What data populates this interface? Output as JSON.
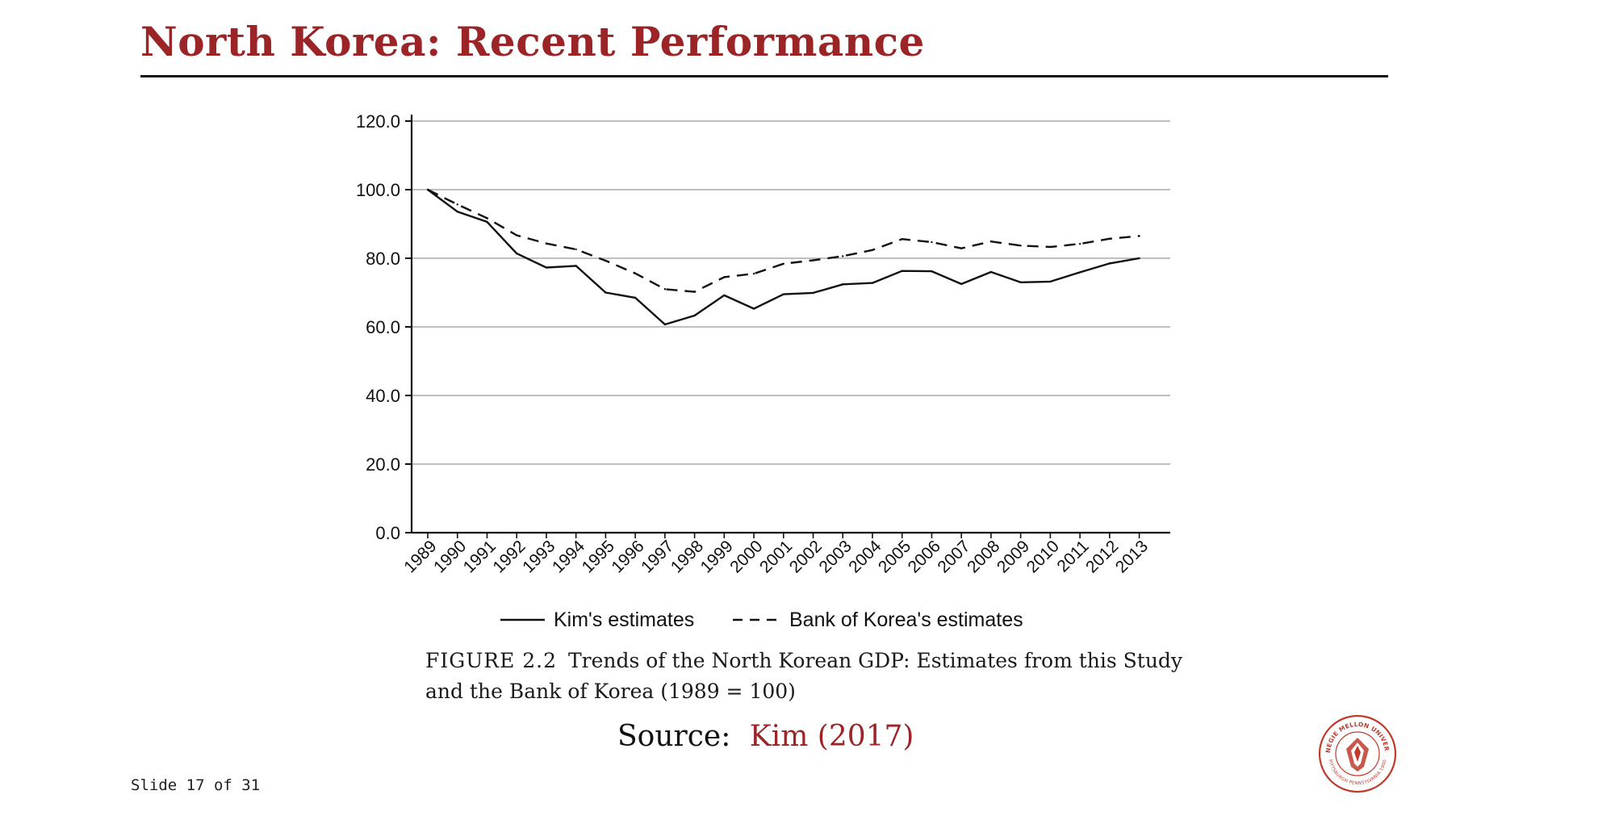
{
  "slide": {
    "title": "North Korea: Recent Performance",
    "source_prefix": "Source:",
    "source_link": "Kim (2017)",
    "counter": "Slide 17 of 31"
  },
  "figure": {
    "caption_label": "FIGURE 2.2",
    "caption_text": "Trends of the North Korean GDP: Estimates from this Study and the Bank of Korea (1989 = 100)"
  },
  "colors": {
    "title": "#9b2426",
    "link": "#9b2426",
    "line": "#111111",
    "grid": "#9a9a9a",
    "seal": "#c0392b"
  },
  "logo": {
    "icon": "cmu-seal-icon",
    "text_top": "CARNEGIE MELLON UNIVERSITY",
    "text_bottom": "PITTSBURGH PENNSYLVANIA 1900"
  },
  "chart_data": {
    "type": "line",
    "categories": [
      "1989",
      "1990",
      "1991",
      "1992",
      "1993",
      "1994",
      "1995",
      "1996",
      "1997",
      "1998",
      "1999",
      "2000",
      "2001",
      "2002",
      "2003",
      "2004",
      "2005",
      "2006",
      "2007",
      "2008",
      "2009",
      "2010",
      "2011",
      "2012",
      "2013"
    ],
    "series": [
      {
        "name": "Kim's estimates",
        "style": "solid",
        "values": [
          100.0,
          93.6,
          90.6,
          81.4,
          77.3,
          77.8,
          70.0,
          68.5,
          60.7,
          63.3,
          69.2,
          65.3,
          69.5,
          69.9,
          72.4,
          72.8,
          76.3,
          76.2,
          72.5,
          76.0,
          73.0,
          73.2,
          75.9,
          78.5,
          80.0
        ]
      },
      {
        "name": "Bank of Korea's estimates",
        "style": "dashed",
        "values": [
          100.0,
          95.7,
          91.7,
          86.7,
          84.3,
          82.6,
          79.3,
          75.6,
          71.0,
          70.2,
          74.5,
          75.5,
          78.4,
          79.4,
          80.6,
          82.4,
          85.6,
          84.7,
          82.9,
          84.9,
          83.7,
          83.3,
          84.2,
          85.7,
          86.5
        ]
      }
    ],
    "y_ticks": [
      "0.0",
      "20.0",
      "40.0",
      "60.0",
      "80.0",
      "100.0",
      "120.0"
    ],
    "ylim": [
      0,
      120
    ],
    "grid": "horizontal",
    "legend_placement": "bottom-center"
  }
}
